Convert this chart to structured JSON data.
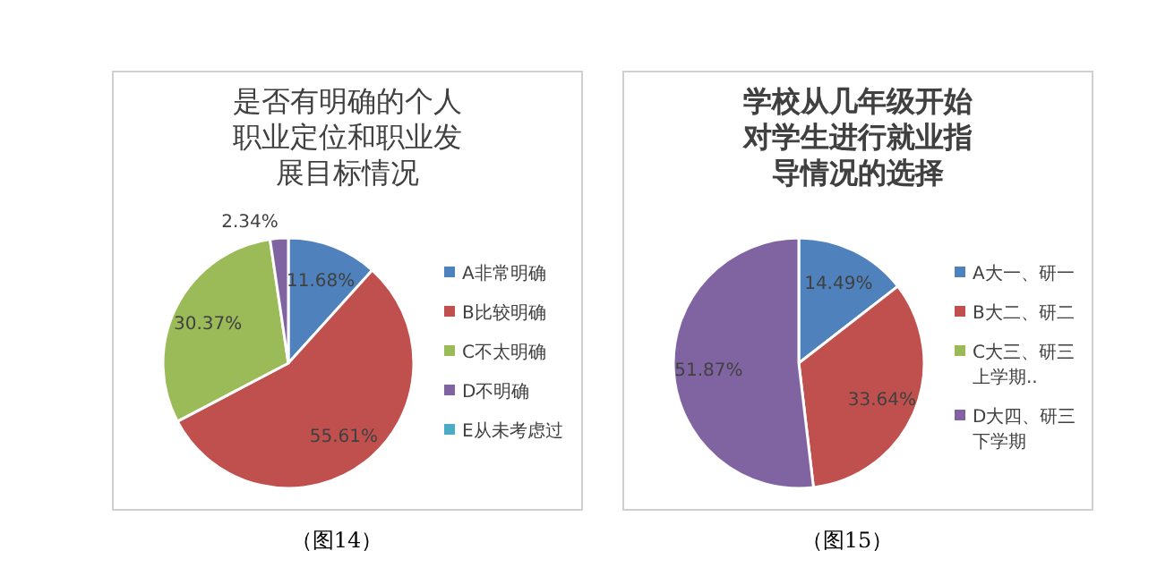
{
  "chart_data": [
    {
      "type": "pie",
      "title": "是否有明确的个人职业定位和职业发展目标情况",
      "categories": [
        "A非常明确",
        "B比较明确",
        "C不太明确",
        "D不明确",
        "E从未考虑过"
      ],
      "values": [
        11.68,
        55.61,
        30.37,
        2.34,
        0
      ],
      "colors": [
        "#4f81bd",
        "#c0504d",
        "#9bbb59",
        "#8064a2",
        "#4bacc6"
      ],
      "value_labels": [
        "11.68%",
        "55.61%",
        "30.37%",
        "2.34%",
        null
      ],
      "legend": "right",
      "annotations": [
        "（图14）"
      ]
    },
    {
      "type": "pie",
      "title": "学校从几年级开始对学生进行就业指导情况的选择",
      "categories": [
        "A大一、研一",
        "B大二、研二",
        "C大三、研三上学期..",
        "D大四、研三下学期"
      ],
      "values": [
        14.49,
        33.64,
        0,
        51.87
      ],
      "colors": [
        "#4f81bd",
        "#c0504d",
        "#9bbb59",
        "#8064a2"
      ],
      "value_labels": [
        "14.49%",
        "33.64%",
        null,
        "51.87%"
      ],
      "legend": "right",
      "annotations": [
        "（图15）"
      ]
    }
  ]
}
